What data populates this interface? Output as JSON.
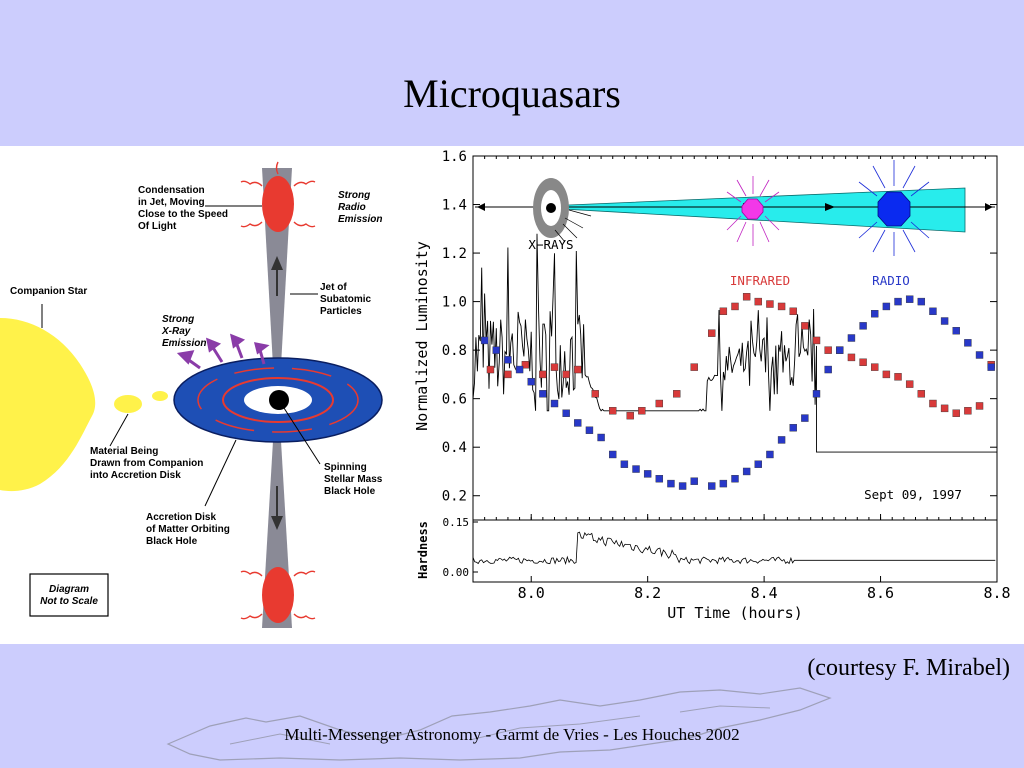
{
  "slide": {
    "title": "Microquasars",
    "credit": "(courtesy F. Mirabel)",
    "footer": "Multi-Messenger Astronomy  -  Garmt de Vries  -  Les Houches 2002"
  },
  "diagram": {
    "labels": {
      "condensation": [
        "Condensation",
        "in Jet, Moving",
        "Close to the Speed",
        "Of Light"
      ],
      "radio_emission": [
        "Strong",
        "Radio",
        "Emission"
      ],
      "companion_star": "Companion Star",
      "xray_emission": [
        "Strong",
        "X-Ray",
        "Emission"
      ],
      "jet": [
        "Jet of",
        "Subatomic",
        "Particles"
      ],
      "material": [
        "Material Being",
        "Drawn from Companion",
        "into Accretion Disk"
      ],
      "black_hole": [
        "Spinning",
        "Stellar Mass",
        "Black Hole"
      ],
      "accretion_disk": [
        "Accretion Disk",
        "of Matter Orbiting",
        "Black Hole"
      ],
      "scale_note": [
        "Diagram",
        "Not to Scale"
      ]
    },
    "colors": {
      "star": "#fff24a",
      "disk": "#1e4fb5",
      "jet": "#8a8a96",
      "blob": "#e83a30"
    }
  },
  "chart_data": {
    "type": "scatter",
    "xlabel": "UT Time (hours)",
    "ylabel": "Normalized Luminosity",
    "ylabel2": "Hardness",
    "xlim": [
      7.9,
      8.8
    ],
    "ylim": [
      0.1,
      1.6
    ],
    "ylim2": [
      0.0,
      0.15
    ],
    "xticks": [
      "8.0",
      "8.2",
      "8.4",
      "8.6",
      "8.8"
    ],
    "yticks": [
      "0.2",
      "0.4",
      "0.6",
      "0.8",
      "1.0",
      "1.2",
      "1.4",
      "1.6"
    ],
    "yticks2": [
      "0.00",
      "0.15"
    ],
    "annotation": "Sept 09, 1997",
    "inset_labels": {
      "xray": "X−RAYS",
      "infrared": "INFRARED",
      "radio": "RADIO"
    },
    "series": [
      {
        "name": "INFRARED",
        "color": "#d83a3a",
        "x": [
          7.93,
          7.96,
          7.99,
          8.02,
          8.04,
          8.06,
          8.08,
          8.11,
          8.14,
          8.17,
          8.19,
          8.22,
          8.25,
          8.28,
          8.31,
          8.33,
          8.35,
          8.37,
          8.39,
          8.41,
          8.43,
          8.45,
          8.47,
          8.49,
          8.51,
          8.53,
          8.55,
          8.57,
          8.59,
          8.61,
          8.63,
          8.65,
          8.67,
          8.69,
          8.71,
          8.73,
          8.75,
          8.77,
          8.79
        ],
        "y": [
          0.72,
          0.7,
          0.74,
          0.7,
          0.73,
          0.7,
          0.72,
          0.62,
          0.55,
          0.53,
          0.55,
          0.58,
          0.62,
          0.73,
          0.87,
          0.96,
          0.98,
          1.02,
          1.0,
          0.99,
          0.98,
          0.96,
          0.9,
          0.84,
          0.8,
          0.8,
          0.77,
          0.75,
          0.73,
          0.7,
          0.69,
          0.66,
          0.62,
          0.58,
          0.56,
          0.54,
          0.55,
          0.57,
          0.74
        ]
      },
      {
        "name": "RADIO",
        "color": "#2838c8",
        "x": [
          7.92,
          7.94,
          7.96,
          7.98,
          8.0,
          8.02,
          8.04,
          8.06,
          8.08,
          8.1,
          8.12,
          8.14,
          8.16,
          8.18,
          8.2,
          8.22,
          8.24,
          8.26,
          8.28,
          8.31,
          8.33,
          8.35,
          8.37,
          8.39,
          8.41,
          8.43,
          8.45,
          8.47,
          8.49,
          8.51,
          8.53,
          8.55,
          8.57,
          8.59,
          8.61,
          8.63,
          8.65,
          8.67,
          8.69,
          8.71,
          8.73,
          8.75,
          8.77,
          8.79
        ],
        "y": [
          0.84,
          0.8,
          0.76,
          0.72,
          0.67,
          0.62,
          0.58,
          0.54,
          0.5,
          0.47,
          0.44,
          0.37,
          0.33,
          0.31,
          0.29,
          0.27,
          0.25,
          0.24,
          0.26,
          0.24,
          0.25,
          0.27,
          0.3,
          0.33,
          0.37,
          0.43,
          0.48,
          0.52,
          0.62,
          0.72,
          0.8,
          0.85,
          0.9,
          0.95,
          0.98,
          1.0,
          1.01,
          1.0,
          0.96,
          0.92,
          0.88,
          0.83,
          0.78,
          0.73
        ]
      }
    ]
  }
}
